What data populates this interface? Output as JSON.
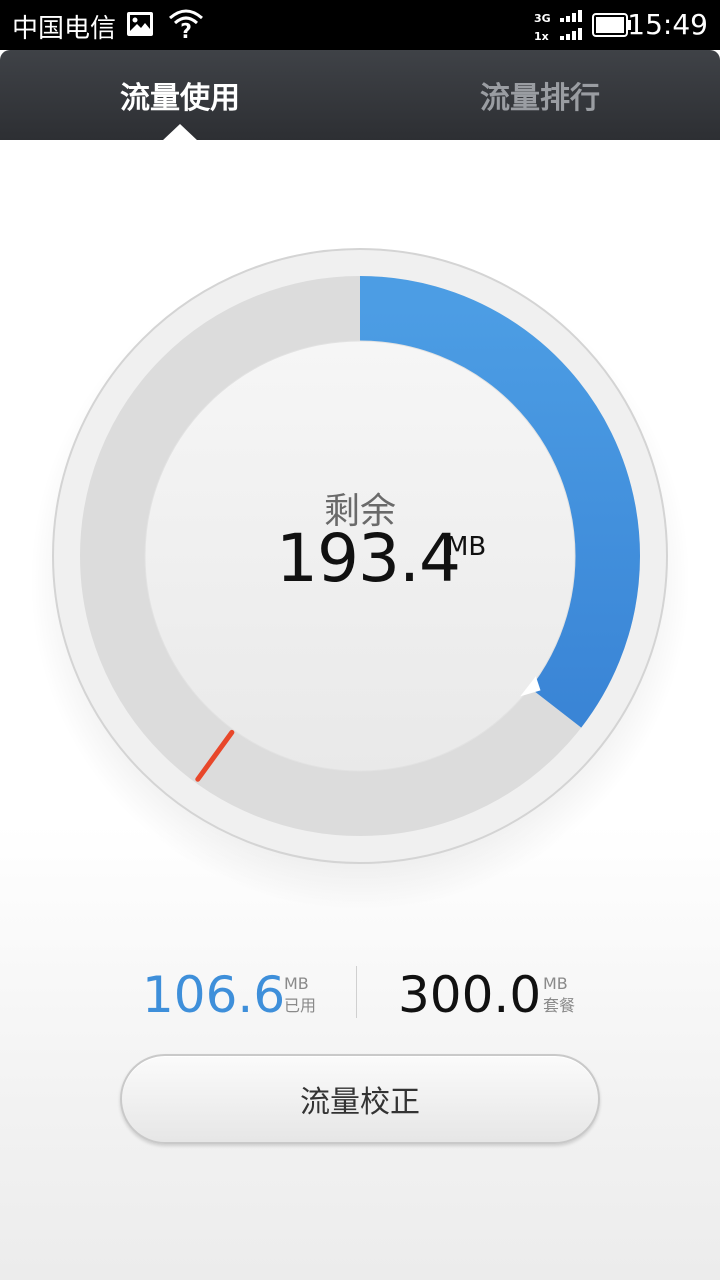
{
  "status_bar": {
    "carrier": "中国电信",
    "network_top": "3G",
    "network_bottom": "1x",
    "time": "15:49"
  },
  "tabs": [
    {
      "label": "流量使用",
      "active": true
    },
    {
      "label": "流量排行",
      "active": false
    }
  ],
  "gauge": {
    "remaining_label": "剩余",
    "remaining_value": "193.4",
    "remaining_unit": "MB",
    "used_fraction": 0.355,
    "used_color": "#3e8fda",
    "track_color": "#dcdcdc",
    "warning_color": "#e8472a"
  },
  "stats": {
    "used_value": "106.6",
    "used_unit": "MB",
    "used_label": "已用",
    "plan_value": "300.0",
    "plan_unit": "MB",
    "plan_label": "套餐"
  },
  "actions": {
    "calibrate_label": "流量校正"
  }
}
